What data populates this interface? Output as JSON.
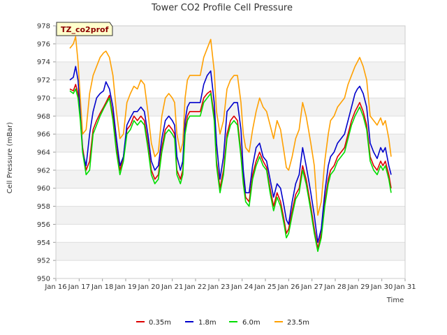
{
  "chart_data": {
    "type": "line",
    "title": "Tower CO2 Profile Cell Pressure",
    "tag": "TZ_co2prof",
    "xlabel": "Time",
    "ylabel": "Cell Pressure (mBar)",
    "ylim": [
      950,
      978
    ],
    "yticks": [
      950,
      952,
      954,
      956,
      958,
      960,
      962,
      964,
      966,
      968,
      970,
      972,
      974,
      976,
      978
    ],
    "xlim": [
      16,
      31
    ],
    "xticks": [
      {
        "v": 16,
        "label": "Jan 16"
      },
      {
        "v": 17,
        "label": "Jan 17"
      },
      {
        "v": 18,
        "label": "Jan 18"
      },
      {
        "v": 19,
        "label": "Jan 19"
      },
      {
        "v": 20,
        "label": "Jan 20"
      },
      {
        "v": 21,
        "label": "Jan 21"
      },
      {
        "v": 22,
        "label": "Jan 22"
      },
      {
        "v": 23,
        "label": "Jan 23"
      },
      {
        "v": 24,
        "label": "Jan 24"
      },
      {
        "v": 25,
        "label": "Jan 25"
      },
      {
        "v": 26,
        "label": "Jan 26"
      },
      {
        "v": 27,
        "label": "Jan 27"
      },
      {
        "v": 28,
        "label": "Jan 28"
      },
      {
        "v": 29,
        "label": "Jan 29"
      },
      {
        "v": 30,
        "label": "Jan 30"
      },
      {
        "v": 31,
        "label": "Jan 31"
      }
    ],
    "grid": "horizontal bands",
    "legend_position": "bottom",
    "series": [
      {
        "name": "0.35m",
        "color": "#dd0000",
        "x": [
          16.6,
          16.75,
          16.85,
          16.95,
          17.05,
          17.15,
          17.3,
          17.45,
          17.6,
          17.75,
          17.9,
          18.05,
          18.15,
          18.3,
          18.45,
          18.6,
          18.75,
          18.9,
          19.05,
          19.2,
          19.35,
          19.5,
          19.65,
          19.8,
          19.95,
          20.1,
          20.25,
          20.4,
          20.55,
          20.7,
          20.85,
          21.0,
          21.1,
          21.2,
          21.35,
          21.45,
          21.55,
          21.65,
          21.75,
          21.9,
          22.05,
          22.2,
          22.35,
          22.5,
          22.65,
          22.8,
          22.9,
          23.05,
          23.2,
          23.35,
          23.5,
          23.65,
          23.8,
          23.95,
          24.05,
          24.15,
          24.3,
          24.45,
          24.6,
          24.75,
          24.9,
          25.05,
          25.2,
          25.35,
          25.5,
          25.65,
          25.8,
          25.9,
          26.0,
          26.15,
          26.3,
          26.45,
          26.6,
          26.75,
          26.85,
          26.95,
          27.1,
          27.25,
          27.4,
          27.55,
          27.7,
          27.8,
          27.95,
          28.1,
          28.25,
          28.4,
          28.55,
          28.7,
          28.85,
          28.95,
          29.05,
          29.2,
          29.35,
          29.5,
          29.65,
          29.8,
          29.95,
          30.05,
          30.15,
          30.3,
          30.4
        ],
        "y": [
          971,
          970.8,
          971.5,
          970.5,
          968,
          964.5,
          962,
          963,
          966.5,
          967.5,
          968.3,
          969,
          969.5,
          970.3,
          968,
          964.5,
          962,
          963.5,
          966.5,
          967,
          968,
          967.5,
          968,
          967.5,
          965,
          962,
          961,
          961.5,
          964.5,
          966.5,
          967,
          966.5,
          966,
          962,
          961,
          962,
          966.5,
          968,
          968.5,
          968.5,
          968.5,
          968.5,
          970,
          970.5,
          970.8,
          968,
          963,
          960,
          962,
          966,
          967.5,
          968,
          967.5,
          964,
          961,
          959,
          958.5,
          961.5,
          963,
          964,
          963,
          962.3,
          960,
          958,
          959.5,
          958.5,
          956.5,
          955,
          955.5,
          957.5,
          959.3,
          960,
          962.5,
          961,
          959.5,
          958,
          955.5,
          953.3,
          955,
          958.5,
          961,
          962,
          962.5,
          963.5,
          964,
          964.5,
          966,
          967.5,
          968.5,
          969,
          969.5,
          968.5,
          967,
          963.5,
          962.5,
          962,
          963,
          962.5,
          963,
          961.5,
          960
        ]
      },
      {
        "name": "1.8m",
        "color": "#0000cc",
        "x": [
          16.6,
          16.75,
          16.85,
          16.95,
          17.05,
          17.15,
          17.3,
          17.45,
          17.6,
          17.75,
          17.9,
          18.05,
          18.15,
          18.3,
          18.45,
          18.6,
          18.75,
          18.9,
          19.05,
          19.2,
          19.35,
          19.5,
          19.65,
          19.8,
          19.95,
          20.1,
          20.25,
          20.4,
          20.55,
          20.7,
          20.85,
          21.0,
          21.1,
          21.2,
          21.35,
          21.45,
          21.55,
          21.65,
          21.75,
          21.9,
          22.05,
          22.2,
          22.35,
          22.5,
          22.65,
          22.8,
          22.9,
          23.05,
          23.2,
          23.35,
          23.5,
          23.65,
          23.8,
          23.95,
          24.05,
          24.15,
          24.3,
          24.45,
          24.6,
          24.75,
          24.9,
          25.05,
          25.2,
          25.35,
          25.5,
          25.65,
          25.8,
          25.9,
          26.0,
          26.15,
          26.3,
          26.45,
          26.6,
          26.75,
          26.85,
          26.95,
          27.1,
          27.25,
          27.4,
          27.55,
          27.7,
          27.8,
          27.95,
          28.1,
          28.25,
          28.4,
          28.55,
          28.7,
          28.85,
          28.95,
          29.05,
          29.2,
          29.35,
          29.5,
          29.65,
          29.8,
          29.95,
          30.05,
          30.15,
          30.3,
          30.4
        ],
        "y": [
          972,
          972.3,
          973.5,
          972,
          968.5,
          964,
          962.5,
          966,
          968.5,
          970,
          970.5,
          970.8,
          971.8,
          971,
          969,
          965.5,
          962.5,
          963.5,
          967,
          967.8,
          968.5,
          968.5,
          969,
          968.5,
          966,
          963,
          962,
          962.5,
          965.5,
          967.5,
          968,
          967.5,
          967,
          963.5,
          962,
          963,
          967.5,
          969,
          969.5,
          969.5,
          969.5,
          969.5,
          971.5,
          972.5,
          973,
          969.5,
          965,
          961,
          963.5,
          968.5,
          969,
          969.5,
          969.5,
          966.5,
          962,
          959.5,
          959.5,
          962.5,
          964.5,
          965,
          963.5,
          963,
          961,
          959,
          960.5,
          960,
          958,
          956.5,
          956,
          958.5,
          960.5,
          961.5,
          964.5,
          962.5,
          961,
          959.5,
          957,
          954,
          955.5,
          959.5,
          962.5,
          963.5,
          964,
          965,
          965.5,
          966,
          967.5,
          969,
          970.5,
          971,
          971.3,
          970.5,
          969,
          965,
          964,
          963.3,
          964.5,
          964,
          964.5,
          962.5,
          961.5
        ]
      },
      {
        "name": "6.0m",
        "color": "#00dd00",
        "x": [
          16.6,
          16.75,
          16.85,
          16.95,
          17.05,
          17.15,
          17.3,
          17.45,
          17.6,
          17.75,
          17.9,
          18.05,
          18.15,
          18.3,
          18.45,
          18.6,
          18.75,
          18.9,
          19.05,
          19.2,
          19.35,
          19.5,
          19.65,
          19.8,
          19.95,
          20.1,
          20.25,
          20.4,
          20.55,
          20.7,
          20.85,
          21.0,
          21.1,
          21.2,
          21.35,
          21.45,
          21.55,
          21.65,
          21.75,
          21.9,
          22.05,
          22.2,
          22.35,
          22.5,
          22.65,
          22.8,
          22.9,
          23.05,
          23.2,
          23.35,
          23.5,
          23.65,
          23.8,
          23.95,
          24.05,
          24.15,
          24.3,
          24.45,
          24.6,
          24.75,
          24.9,
          25.05,
          25.2,
          25.35,
          25.5,
          25.65,
          25.8,
          25.9,
          26.0,
          26.15,
          26.3,
          26.45,
          26.6,
          26.75,
          26.85,
          26.95,
          27.1,
          27.25,
          27.4,
          27.55,
          27.7,
          27.8,
          27.95,
          28.1,
          28.25,
          28.4,
          28.55,
          28.7,
          28.85,
          28.95,
          29.05,
          29.2,
          29.35,
          29.5,
          29.65,
          29.8,
          29.95,
          30.05,
          30.15,
          30.3,
          30.4
        ],
        "y": [
          970.8,
          970.5,
          971,
          970,
          967.5,
          964,
          961.5,
          962,
          966,
          967,
          968,
          968.8,
          969.3,
          970,
          967.5,
          964,
          961.5,
          963,
          966,
          966.5,
          967.5,
          967,
          967.5,
          967,
          964.5,
          961.5,
          960.5,
          961,
          964,
          966,
          966.5,
          966,
          965.5,
          961.5,
          960.5,
          961.5,
          966,
          967.5,
          968,
          968,
          968,
          968,
          969.5,
          970,
          970.5,
          967.5,
          962.5,
          959.5,
          961.5,
          965.5,
          967,
          967.5,
          967,
          963.5,
          960.5,
          958.5,
          958,
          961,
          962.5,
          963.5,
          962.5,
          962,
          959.5,
          957.5,
          959,
          958,
          956,
          954.5,
          955,
          957,
          958.8,
          959.5,
          962,
          960.5,
          959,
          957.5,
          955,
          953,
          954.5,
          958,
          960.5,
          961.5,
          962,
          963,
          963.5,
          964,
          965.5,
          967,
          968,
          968.5,
          969,
          968,
          966.5,
          963,
          962,
          961.5,
          962.5,
          962,
          962.5,
          961,
          959.5
        ]
      },
      {
        "name": "23.5m",
        "color": "#ffa000",
        "x": [
          16.6,
          16.75,
          16.85,
          16.95,
          17.05,
          17.15,
          17.3,
          17.45,
          17.6,
          17.75,
          17.9,
          18.05,
          18.15,
          18.3,
          18.45,
          18.6,
          18.75,
          18.9,
          19.05,
          19.2,
          19.35,
          19.5,
          19.65,
          19.8,
          19.95,
          20.1,
          20.25,
          20.4,
          20.55,
          20.7,
          20.85,
          21.0,
          21.1,
          21.2,
          21.35,
          21.45,
          21.55,
          21.65,
          21.75,
          21.9,
          22.05,
          22.2,
          22.35,
          22.5,
          22.65,
          22.8,
          22.9,
          23.05,
          23.2,
          23.35,
          23.5,
          23.65,
          23.8,
          23.95,
          24.05,
          24.15,
          24.3,
          24.45,
          24.6,
          24.75,
          24.9,
          25.05,
          25.2,
          25.35,
          25.5,
          25.65,
          25.8,
          25.9,
          26.0,
          26.15,
          26.3,
          26.45,
          26.6,
          26.75,
          26.85,
          26.95,
          27.1,
          27.25,
          27.4,
          27.55,
          27.7,
          27.8,
          27.95,
          28.1,
          28.25,
          28.4,
          28.55,
          28.7,
          28.85,
          28.95,
          29.05,
          29.2,
          29.35,
          29.5,
          29.65,
          29.8,
          29.95,
          30.05,
          30.15,
          30.3,
          30.4
        ],
        "y": [
          975.5,
          976,
          976.8,
          974,
          970,
          966,
          966.5,
          970.5,
          972.5,
          973.5,
          974.5,
          975,
          975.2,
          974.5,
          972.5,
          968.5,
          965.5,
          966,
          969.5,
          970.5,
          971.3,
          971,
          972,
          971.5,
          968.5,
          965,
          963.5,
          964,
          968,
          970,
          970.5,
          970,
          969.5,
          966,
          964,
          965,
          970,
          972,
          972.5,
          972.5,
          972.5,
          972.5,
          974.5,
          975.5,
          976.5,
          973,
          968.5,
          966,
          967.5,
          971,
          972,
          972.5,
          972.5,
          969.5,
          966,
          964.5,
          964,
          966.5,
          968.5,
          970,
          969,
          968.5,
          967,
          965.5,
          967.5,
          966.5,
          964,
          962.3,
          962,
          963.5,
          965.5,
          966.5,
          969.5,
          968,
          966.5,
          965,
          962.5,
          957,
          958.5,
          963,
          966,
          967.5,
          968,
          969,
          969.5,
          970,
          971.5,
          972.5,
          973.5,
          974,
          974.5,
          973.5,
          972,
          968,
          967.5,
          967,
          967.8,
          967,
          967.5,
          965.5,
          963.5
        ]
      }
    ]
  }
}
